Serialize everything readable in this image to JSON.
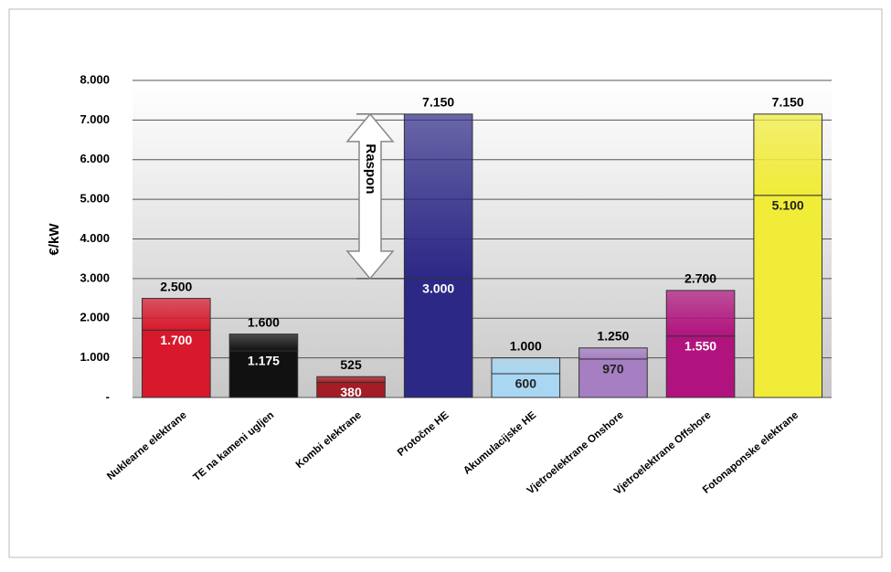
{
  "chart_data": {
    "type": "range_bar",
    "y_label": "€/kW",
    "annotation": "Raspon",
    "categories": [
      "Nuklearne elektrane",
      "TE na kameni ugljen",
      "Kombi elektrane",
      "Protočne HE",
      "Akumulacijske HE",
      "Vjetroelektrane Onshore",
      "Vjetroelektrane Offshore",
      "Fotonaponske elektrane"
    ],
    "colors": [
      "#d8192c",
      "#111111",
      "#a41c26",
      "#2c2886",
      "#a9d6f2",
      "#a67fc3",
      "#b1137e",
      "#f1ec38"
    ],
    "series": [
      {
        "values": [
          1700,
          1175,
          380,
          3000,
          600,
          970,
          1550,
          5100
        ],
        "value_labels": [
          "1.700",
          "1.175",
          "380",
          "3.000",
          "600",
          "970",
          "1.550",
          "5.100"
        ]
      },
      {
        "values": [
          2500,
          1600,
          525,
          7150,
          1000,
          1250,
          2700,
          7150
        ],
        "value_labels": [
          "2.500",
          "1.600",
          "525",
          "7.150",
          "1.000",
          "1.250",
          "2.700",
          "7.150"
        ]
      }
    ],
    "ylim": [
      0,
      8000
    ],
    "yticks": [
      {
        "value": 0,
        "label": "-"
      },
      {
        "value": 1000,
        "label": "1.000"
      },
      {
        "value": 2000,
        "label": "2.000"
      },
      {
        "value": 3000,
        "label": "3.000"
      },
      {
        "value": 4000,
        "label": "4.000"
      },
      {
        "value": 5000,
        "label": "5.000"
      },
      {
        "value": 6000,
        "label": "6.000"
      },
      {
        "value": 7000,
        "label": "7.000"
      },
      {
        "value": 8000,
        "label": "8.000"
      }
    ],
    "grid": true
  }
}
